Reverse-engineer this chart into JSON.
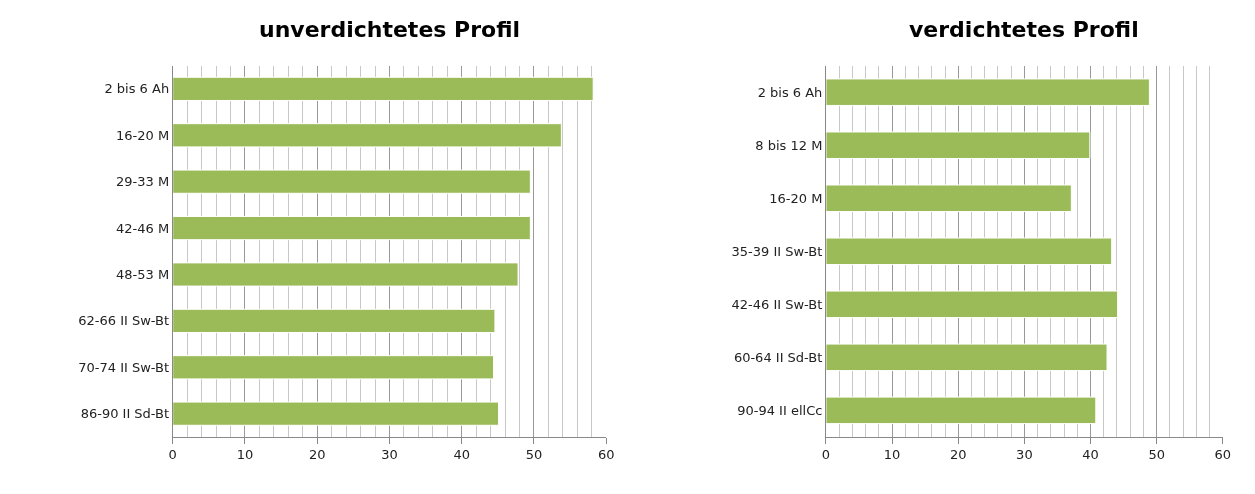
{
  "chart_data": [
    {
      "type": "bar",
      "orientation": "horizontal",
      "title": "unverdichtetes Profil",
      "categories": [
        "2 bis 6 Ah",
        "16-20 M",
        "29-33 M",
        "42-46 M",
        "48-53 M",
        "62-66 II Sw-Bt",
        "70-74 II Sw-Bt",
        "86-90 II Sd-Bt"
      ],
      "values": [
        58.2,
        53.8,
        49.5,
        49.5,
        47.8,
        44.6,
        44.4,
        45.1
      ],
      "color": "#9bbb59",
      "xlim": [
        0,
        60
      ],
      "xticks": [
        0,
        10,
        20,
        30,
        40,
        50,
        60
      ],
      "grid": "x"
    },
    {
      "type": "bar",
      "orientation": "horizontal",
      "title": "verdichtetes Profil",
      "categories": [
        "2 bis 6 Ah",
        "8 bis 12 M",
        "16-20 M",
        "35-39 II Sw-Bt",
        "42-46 II Sw-Bt",
        "60-64 II Sd-Bt",
        "90-94 II ellCc"
      ],
      "values": [
        48.9,
        39.9,
        37.1,
        43.2,
        44.1,
        42.5,
        40.8
      ],
      "color": "#9bbb59",
      "xlim": [
        0,
        60
      ],
      "xticks": [
        0,
        10,
        20,
        30,
        40,
        50,
        60
      ],
      "grid": "x"
    }
  ]
}
